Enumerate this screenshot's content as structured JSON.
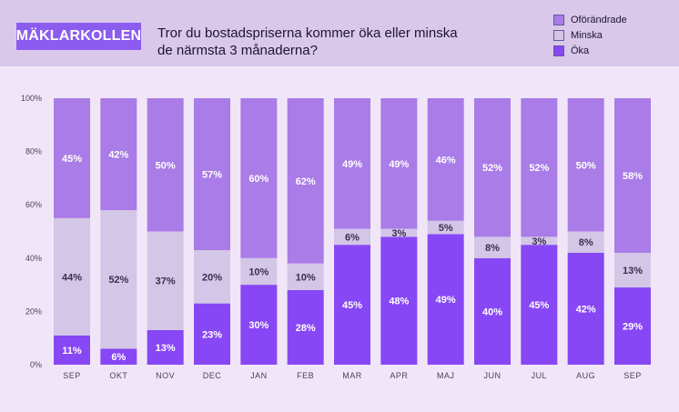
{
  "header": {
    "brand": "MÄKLARKOLLEN",
    "title_line1": "Tror du bostadspriserna kommer öka eller minska",
    "title_line2": "de närmsta 3 månaderna?"
  },
  "colors": {
    "oforandrade": "#a97ce7",
    "minska": "#d3c6e6",
    "oka": "#8747f4",
    "label_on_light": "#3a2f52"
  },
  "chart_data": {
    "type": "bar",
    "stacked": true,
    "percent": true,
    "categories": [
      "SEP",
      "OKT",
      "NOV",
      "DEC",
      "JAN",
      "FEB",
      "MAR",
      "APR",
      "MAJ",
      "JUN",
      "JUL",
      "AUG",
      "SEP"
    ],
    "series": [
      {
        "name": "Öka",
        "values": [
          11,
          6,
          13,
          23,
          30,
          28,
          45,
          48,
          49,
          40,
          45,
          42,
          29
        ]
      },
      {
        "name": "Minska",
        "values": [
          44,
          52,
          37,
          20,
          10,
          10,
          6,
          3,
          5,
          8,
          3,
          8,
          13
        ]
      },
      {
        "name": "Oförändrade",
        "values": [
          45,
          42,
          50,
          57,
          60,
          62,
          49,
          49,
          46,
          52,
          52,
          50,
          58
        ]
      }
    ],
    "legend": [
      "Oförändrade",
      "Minska",
      "Öka"
    ],
    "legend_position": "top-right",
    "y_ticks": [
      "0%",
      "20%",
      "40%",
      "60%",
      "80%",
      "100%"
    ],
    "ylim": [
      0,
      100
    ],
    "title": "Tror du bostadspriserna kommer öka eller minska de närmsta 3 månaderna?",
    "xlabel": "",
    "ylabel": ""
  }
}
